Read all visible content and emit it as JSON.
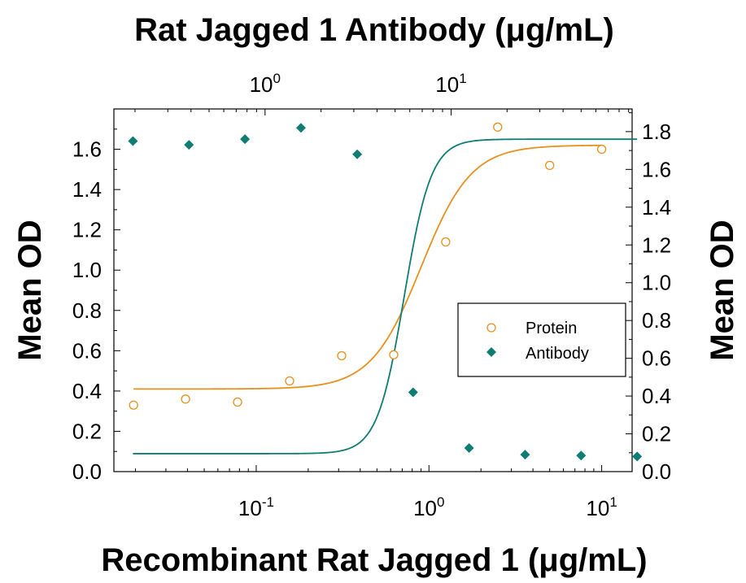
{
  "chart_data": {
    "type": "scatter",
    "title": "Rat Jagged 1 Antibody (μg/mL)",
    "xlabel": "Recombinant Rat Jagged 1 (μg/mL)",
    "ylabel_left": "Mean OD",
    "ylabel_right": "Mean OD",
    "x_bottom": {
      "scale": "log",
      "range": [
        0.015,
        15
      ],
      "ticks": [
        {
          "value": 0.1,
          "base": "10",
          "exp": "-1"
        },
        {
          "value": 1,
          "base": "10",
          "exp": "0"
        },
        {
          "value": 10,
          "base": "10",
          "exp": "1"
        }
      ]
    },
    "x_top": {
      "scale": "log",
      "range": [
        0.154,
        94.0
      ],
      "ticks": [
        {
          "value": 1,
          "base": "10",
          "exp": "0"
        },
        {
          "value": 10,
          "base": "10",
          "exp": "1"
        }
      ]
    },
    "y_left": {
      "range": [
        0,
        1.8
      ],
      "ticks": [
        "0.0",
        "0.2",
        "0.4",
        "0.6",
        "0.8",
        "1.0",
        "1.2",
        "1.4",
        "1.6"
      ]
    },
    "y_right": {
      "range": [
        0,
        1.92
      ],
      "ticks": [
        "0.0",
        "0.2",
        "0.4",
        "0.6",
        "0.8",
        "1.0",
        "1.2",
        "1.4",
        "1.6",
        "1.8"
      ]
    },
    "grid": false,
    "legend_position": "right",
    "series": [
      {
        "name": "Protein",
        "marker": "open-circle",
        "color": "#E8901E",
        "axis": "bottom-left",
        "x": [
          0.0195,
          0.039,
          0.078,
          0.156,
          0.3125,
          0.625,
          1.25,
          2.5,
          5,
          10
        ],
        "y": [
          0.33,
          0.36,
          0.345,
          0.45,
          0.575,
          0.58,
          1.14,
          1.71,
          1.52,
          1.6
        ],
        "fit": {
          "bottom": 0.41,
          "top": 1.62,
          "ec50": 0.9,
          "hill": 3.0
        }
      },
      {
        "name": "Antibody",
        "marker": "filled-diamond",
        "color": "#0E7D74",
        "axis": "top-right",
        "x": [
          0.195,
          0.39,
          0.78,
          1.56,
          3.13,
          6.25,
          12.5,
          25,
          50,
          100
        ],
        "y": [
          1.75,
          1.73,
          1.76,
          1.82,
          1.68,
          0.42,
          0.125,
          0.09,
          0.085,
          0.08
        ],
        "fit": {
          "bottom": 0.095,
          "top": 1.76,
          "ec50": 5.6,
          "hill": 6.0
        }
      }
    ]
  }
}
